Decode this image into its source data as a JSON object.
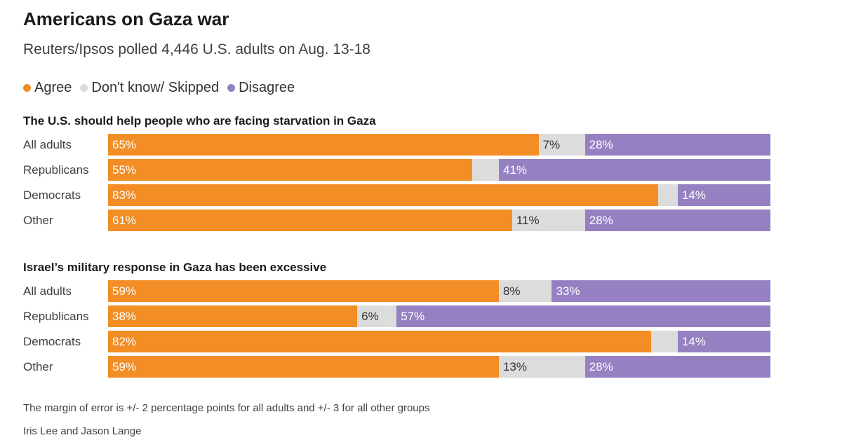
{
  "title": "Americans on Gaza war",
  "subtitle": "Reuters/Ipsos polled 4,446 U.S. adults on Aug. 13-18",
  "legend": [
    {
      "label": "Agree",
      "color": "#f28e25"
    },
    {
      "label": "Don't know/ Skipped",
      "color": "#dcdcdc"
    },
    {
      "label": "Disagree",
      "color": "#9581c2"
    }
  ],
  "chart_data": [
    {
      "type": "bar",
      "stacked": true,
      "orientation": "horizontal",
      "title": "The U.S. should help people who are facing starvation in Gaza",
      "categories": [
        "All adults",
        "Republicans",
        "Democrats",
        "Other"
      ],
      "series": [
        {
          "name": "Agree",
          "values": [
            65,
            55,
            83,
            61
          ],
          "labels": [
            "65%",
            "55%",
            "83%",
            "61%"
          ]
        },
        {
          "name": "Don't know/ Skipped",
          "values": [
            7,
            4,
            3,
            11
          ],
          "labels": [
            "7%",
            "",
            "",
            "11%"
          ]
        },
        {
          "name": "Disagree",
          "values": [
            28,
            41,
            14,
            28
          ],
          "labels": [
            "28%",
            "41%",
            "14%",
            "28%"
          ]
        }
      ],
      "xlim": [
        0,
        100
      ]
    },
    {
      "type": "bar",
      "stacked": true,
      "orientation": "horizontal",
      "title": "Israel’s military response in Gaza has been excessive",
      "categories": [
        "All adults",
        "Republicans",
        "Democrats",
        "Other"
      ],
      "series": [
        {
          "name": "Agree",
          "values": [
            59,
            38,
            82,
            59
          ],
          "labels": [
            "59%",
            "38%",
            "82%",
            "59%"
          ]
        },
        {
          "name": "Don't know/ Skipped",
          "values": [
            8,
            6,
            4,
            13
          ],
          "labels": [
            "8%",
            "6%",
            "",
            "13%"
          ]
        },
        {
          "name": "Disagree",
          "values": [
            33,
            57,
            14,
            28
          ],
          "labels": [
            "33%",
            "57%",
            "14%",
            "28%"
          ]
        }
      ],
      "xlim": [
        0,
        100
      ]
    }
  ],
  "footer": {
    "note": "The margin of error is +/- 2 percentage points for all adults and +/- 3 for all other groups",
    "credit": "Iris Lee and Jason Lange"
  }
}
